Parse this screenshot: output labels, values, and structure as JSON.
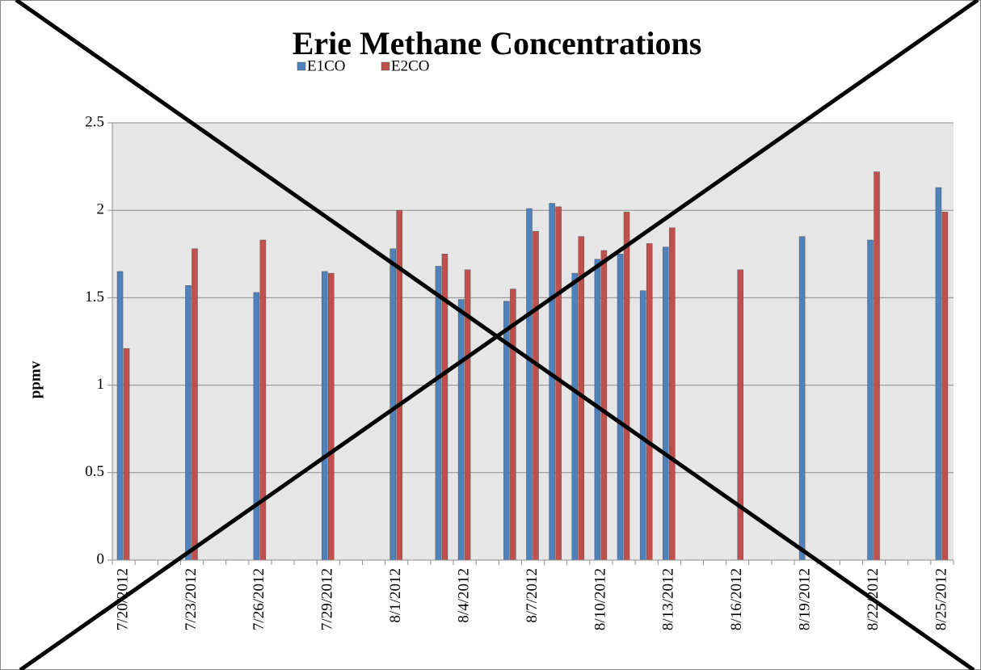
{
  "chart_data": {
    "type": "bar",
    "title": "Erie Methane Concentrations",
    "y_label": "ppmv",
    "categories": [
      "7/20/2012",
      null,
      null,
      "7/23/2012",
      null,
      null,
      "7/26/2012",
      null,
      null,
      "7/29/2012",
      null,
      null,
      "8/1/2012",
      null,
      null,
      "8/4/2012",
      null,
      null,
      "8/7/2012",
      null,
      null,
      "8/10/2012",
      null,
      null,
      "8/13/2012",
      null,
      null,
      "8/16/2012",
      null,
      null,
      "8/19/2012",
      null,
      null,
      "8/22/2012",
      null,
      null,
      "8/25/2012"
    ],
    "series": [
      {
        "name": "E1CO",
        "color": "#4f81bd",
        "values": [
          1.65,
          null,
          null,
          1.57,
          null,
          null,
          1.53,
          null,
          null,
          1.65,
          null,
          null,
          1.78,
          null,
          1.68,
          1.49,
          null,
          1.48,
          2.01,
          2.04,
          1.64,
          1.72,
          1.75,
          1.54,
          1.79,
          null,
          null,
          null,
          null,
          null,
          1.85,
          null,
          null,
          1.83,
          null,
          null,
          2.13
        ]
      },
      {
        "name": "E2CO",
        "color": "#c0504d",
        "values": [
          1.21,
          null,
          null,
          1.78,
          null,
          null,
          1.83,
          null,
          null,
          1.64,
          null,
          null,
          2.0,
          null,
          1.75,
          1.66,
          null,
          1.55,
          1.88,
          2.02,
          1.85,
          1.77,
          1.99,
          1.81,
          1.9,
          null,
          null,
          1.66,
          null,
          null,
          null,
          null,
          null,
          2.22,
          null,
          null,
          1.99
        ]
      }
    ],
    "ylim": [
      0,
      2.5
    ],
    "yticks": [
      0,
      0.5,
      1,
      1.5,
      2,
      2.5
    ],
    "grid": true,
    "legend": "top"
  }
}
